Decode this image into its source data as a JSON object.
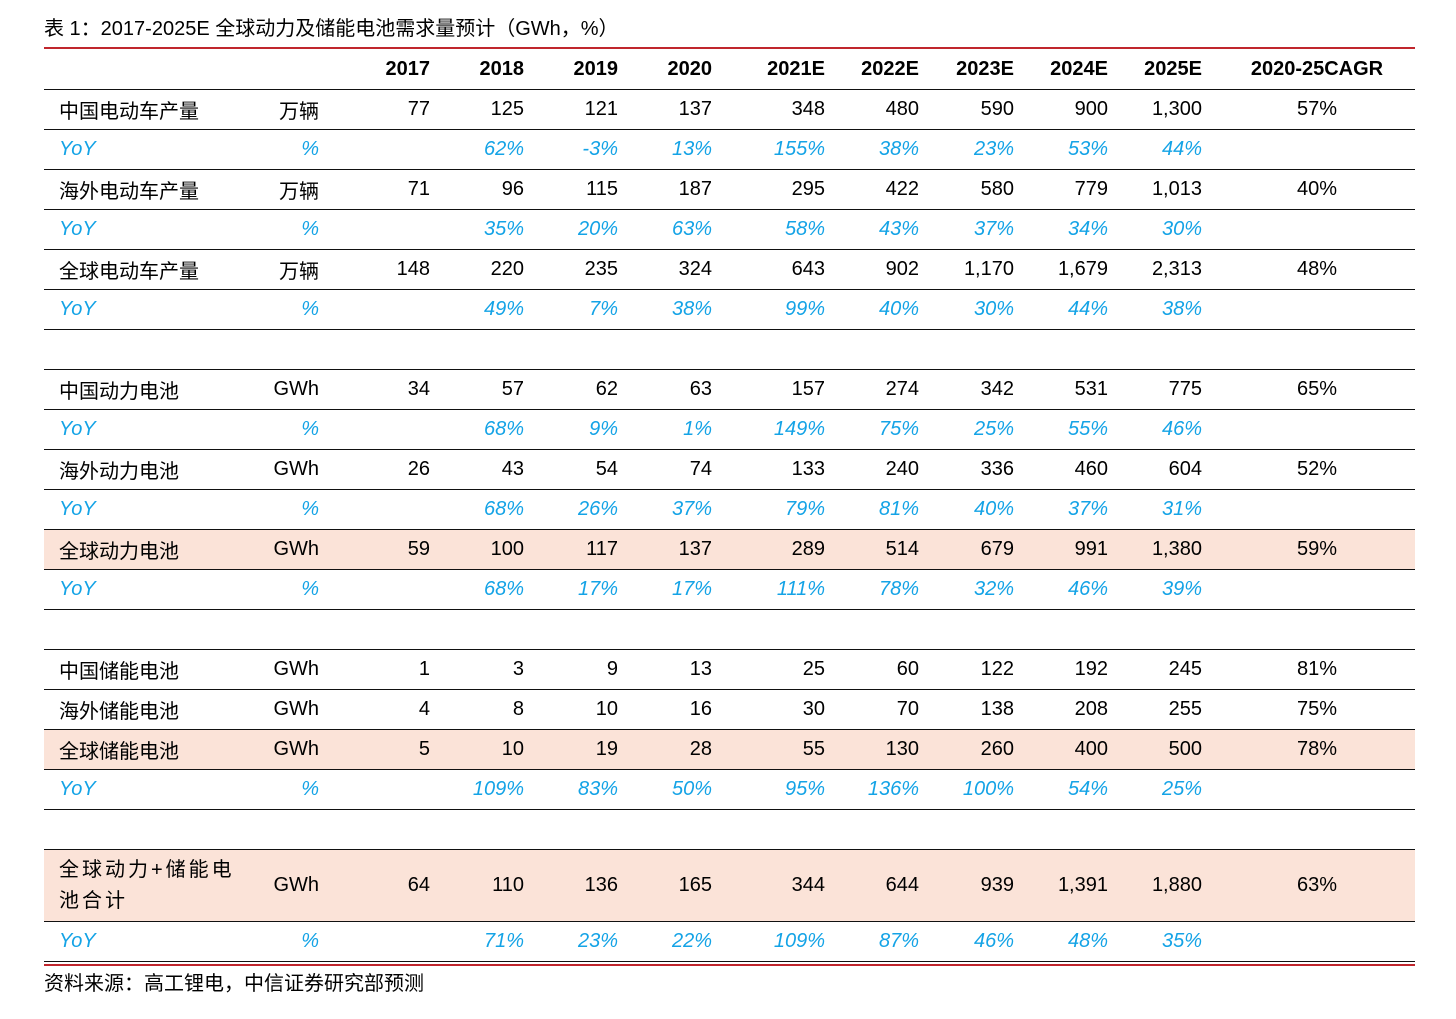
{
  "title": "表 1：2017-2025E 全球动力及储能电池需求量预计（GWh，%）",
  "header": [
    "",
    "",
    "2017",
    "2018",
    "2019",
    "2020",
    "2021E",
    "2022E",
    "2023E",
    "2024E",
    "2025E",
    "2020-25CAGR"
  ],
  "rows": [
    {
      "type": "data",
      "name": "中国电动车产量",
      "unit": "万辆",
      "vals": [
        "77",
        "125",
        "121",
        "137",
        "348",
        "480",
        "590",
        "900",
        "1,300"
      ],
      "cagr": "57%"
    },
    {
      "type": "yoy",
      "name": "YoY",
      "unit": "%",
      "vals": [
        "",
        "62%",
        "-3%",
        "13%",
        "155%",
        "38%",
        "23%",
        "53%",
        "44%"
      ],
      "cagr": ""
    },
    {
      "type": "data",
      "name": "海外电动车产量",
      "unit": "万辆",
      "vals": [
        "71",
        "96",
        "115",
        "187",
        "295",
        "422",
        "580",
        "779",
        "1,013"
      ],
      "cagr": "40%"
    },
    {
      "type": "yoy",
      "name": "YoY",
      "unit": "%",
      "vals": [
        "",
        "35%",
        "20%",
        "63%",
        "58%",
        "43%",
        "37%",
        "34%",
        "30%"
      ],
      "cagr": ""
    },
    {
      "type": "data",
      "name": "全球电动车产量",
      "unit": "万辆",
      "vals": [
        "148",
        "220",
        "235",
        "324",
        "643",
        "902",
        "1,170",
        "1,679",
        "2,313"
      ],
      "cagr": "48%"
    },
    {
      "type": "yoy",
      "name": "YoY",
      "unit": "%",
      "vals": [
        "",
        "49%",
        "7%",
        "38%",
        "99%",
        "40%",
        "30%",
        "44%",
        "38%"
      ],
      "cagr": ""
    },
    {
      "type": "blank"
    },
    {
      "type": "data",
      "name": "中国动力电池",
      "unit": "GWh",
      "vals": [
        "34",
        "57",
        "62",
        "63",
        "157",
        "274",
        "342",
        "531",
        "775"
      ],
      "cagr": "65%"
    },
    {
      "type": "yoy",
      "name": "YoY",
      "unit": "%",
      "vals": [
        "",
        "68%",
        "9%",
        "1%",
        "149%",
        "75%",
        "25%",
        "55%",
        "46%"
      ],
      "cagr": ""
    },
    {
      "type": "data",
      "name": "海外动力电池",
      "unit": "GWh",
      "vals": [
        "26",
        "43",
        "54",
        "74",
        "133",
        "240",
        "336",
        "460",
        "604"
      ],
      "cagr": "52%"
    },
    {
      "type": "yoy",
      "name": "YoY",
      "unit": "%",
      "vals": [
        "",
        "68%",
        "26%",
        "37%",
        "79%",
        "81%",
        "40%",
        "37%",
        "31%"
      ],
      "cagr": ""
    },
    {
      "type": "data",
      "highlight": true,
      "name": "全球动力电池",
      "unit": "GWh",
      "vals": [
        "59",
        "100",
        "117",
        "137",
        "289",
        "514",
        "679",
        "991",
        "1,380"
      ],
      "cagr": "59%"
    },
    {
      "type": "yoy",
      "name": "YoY",
      "unit": "%",
      "vals": [
        "",
        "68%",
        "17%",
        "17%",
        "111%",
        "78%",
        "32%",
        "46%",
        "39%"
      ],
      "cagr": ""
    },
    {
      "type": "blank"
    },
    {
      "type": "data",
      "name": "中国储能电池",
      "unit": "GWh",
      "vals": [
        "1",
        "3",
        "9",
        "13",
        "25",
        "60",
        "122",
        "192",
        "245"
      ],
      "cagr": "81%"
    },
    {
      "type": "data",
      "name": "海外储能电池",
      "unit": "GWh",
      "vals": [
        "4",
        "8",
        "10",
        "16",
        "30",
        "70",
        "138",
        "208",
        "255"
      ],
      "cagr": "75%"
    },
    {
      "type": "data",
      "highlight": true,
      "name": "全球储能电池",
      "unit": "GWh",
      "vals": [
        "5",
        "10",
        "19",
        "28",
        "55",
        "130",
        "260",
        "400",
        "500"
      ],
      "cagr": "78%"
    },
    {
      "type": "yoy",
      "name": "YoY",
      "unit": "%",
      "vals": [
        "",
        "109%",
        "83%",
        "50%",
        "95%",
        "136%",
        "100%",
        "54%",
        "25%"
      ],
      "cagr": ""
    },
    {
      "type": "blank"
    },
    {
      "type": "data",
      "highlight": true,
      "tall": true,
      "name": "全球动力+储能电池合计",
      "unit": "GWh",
      "vals": [
        "64",
        "110",
        "136",
        "165",
        "344",
        "644",
        "939",
        "1,391",
        "1,880"
      ],
      "cagr": "63%"
    },
    {
      "type": "yoy",
      "name": "YoY",
      "unit": "%",
      "vals": [
        "",
        "71%",
        "23%",
        "22%",
        "109%",
        "87%",
        "46%",
        "48%",
        "35%"
      ],
      "cagr": ""
    }
  ],
  "source": "资料来源：高工锂电，中信证券研究部预测",
  "colors": {
    "rule": "#c0262d",
    "yoy_text": "#14a3e6",
    "highlight_fill": "#fbe3d8"
  }
}
